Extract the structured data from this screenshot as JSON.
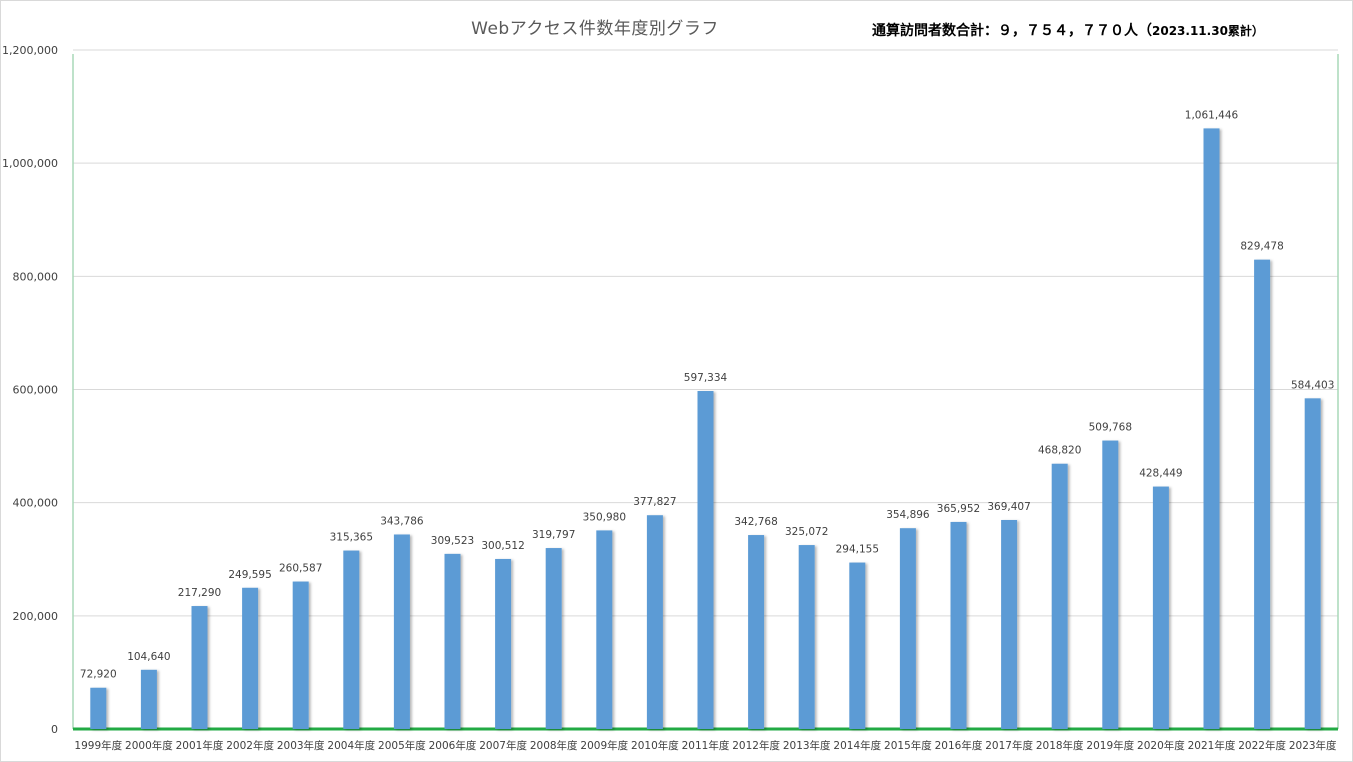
{
  "chart_data": {
    "type": "bar",
    "title": "Webアクセス件数年度別グラフ",
    "annotation": "通算訪問者数合計：９，７５４，７７０人（2023.11.30累計）",
    "annotation_main": "通算訪問者数合計：９，７５４，７７０人（",
    "annotation_small": "2023.11.30累計）",
    "xlabel": "",
    "ylabel": "",
    "ylim": [
      0,
      1200000
    ],
    "yticks": [
      0,
      200000,
      400000,
      600000,
      800000,
      1000000,
      1200000
    ],
    "ytick_labels": [
      "0",
      "200,000",
      "400,000",
      "600,000",
      "800,000",
      "1,000,000",
      "1,200,000"
    ],
    "grid": true,
    "legend": "none",
    "bar_color": "#5b9bd5",
    "categories": [
      "1999年度",
      "2000年度",
      "2001年度",
      "2002年度",
      "2003年度",
      "2004年度",
      "2005年度",
      "2006年度",
      "2007年度",
      "2008年度",
      "2009年度",
      "2010年度",
      "2011年度",
      "2012年度",
      "2013年度",
      "2014年度",
      "2015年度",
      "2016年度",
      "2017年度",
      "2018年度",
      "2019年度",
      "2020年度",
      "2021年度",
      "2022年度",
      "2023年度"
    ],
    "values": [
      72920,
      104640,
      217290,
      249595,
      260587,
      315365,
      343786,
      309523,
      300512,
      319797,
      350980,
      377827,
      597334,
      342768,
      325072,
      294155,
      354896,
      365952,
      369407,
      468820,
      509768,
      428449,
      1061446,
      829478,
      584403
    ],
    "data_labels": [
      "72,920",
      "104,640",
      "217,290",
      "249,595",
      "260,587",
      "315,365",
      "343,786",
      "309,523",
      "300,512",
      "319,797",
      "350,980",
      "377,827",
      "597,334",
      "342,768",
      "325,072",
      "294,155",
      "354,896",
      "365,952",
      "369,407",
      "468,820",
      "509,768",
      "428,449",
      "1,061,446",
      "829,478",
      "584,403"
    ]
  }
}
